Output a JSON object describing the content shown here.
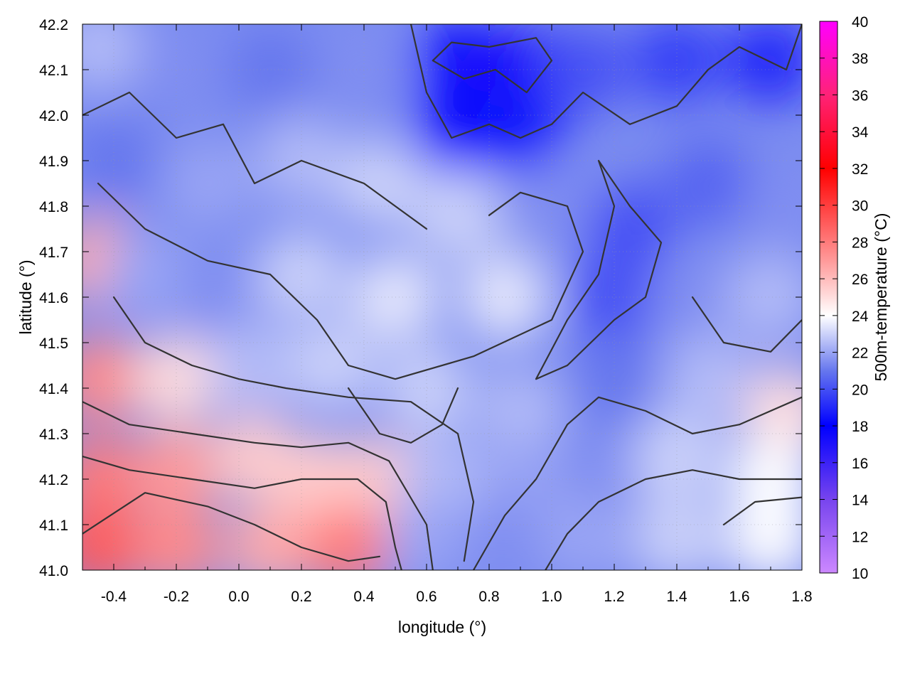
{
  "chart_data": {
    "type": "heatmap",
    "title": "",
    "xlabel": "longitude (°)",
    "ylabel": "latitude (°)",
    "colorbar_label": "500m-temperature (°C)",
    "xlim": [
      -0.5,
      1.8
    ],
    "ylim": [
      41.0,
      42.2
    ],
    "zlim": [
      10,
      40
    ],
    "x_ticks": [
      -0.4,
      -0.2,
      0.0,
      0.2,
      0.4,
      0.6,
      0.8,
      1.0,
      1.2,
      1.4,
      1.6,
      1.8
    ],
    "x_tick_labels": [
      "-0.4",
      "-0.2",
      "0.0",
      "0.2",
      "0.4",
      "0.6",
      "0.8",
      "1.0",
      "1.2",
      "1.4",
      "1.6",
      "1.8"
    ],
    "y_ticks": [
      41.0,
      41.1,
      41.2,
      41.3,
      41.4,
      41.5,
      41.6,
      41.7,
      41.8,
      41.9,
      42.0,
      42.1,
      42.2
    ],
    "y_tick_labels": [
      "41.0",
      "41.1",
      "41.2",
      "41.3",
      "41.4",
      "41.5",
      "41.6",
      "41.7",
      "41.8",
      "41.9",
      "42.0",
      "42.1",
      "42.2"
    ],
    "cb_ticks": [
      10,
      12,
      14,
      16,
      18,
      20,
      22,
      24,
      26,
      28,
      30,
      32,
      34,
      36,
      38,
      40
    ],
    "cb_tick_labels": [
      "10",
      "12",
      "14",
      "16",
      "18",
      "20",
      "22",
      "24",
      "26",
      "28",
      "30",
      "32",
      "34",
      "36",
      "38",
      "40"
    ],
    "grid": true,
    "colormap": [
      {
        "value": 10,
        "color": "#cc88ff"
      },
      {
        "value": 14,
        "color": "#7744ee"
      },
      {
        "value": 18,
        "color": "#0000ff"
      },
      {
        "value": 21,
        "color": "#6677ee"
      },
      {
        "value": 24,
        "color": "#ffffff"
      },
      {
        "value": 27,
        "color": "#ff9999"
      },
      {
        "value": 32,
        "color": "#ff0000"
      },
      {
        "value": 36,
        "color": "#ff2277"
      },
      {
        "value": 40,
        "color": "#ff00ff"
      }
    ],
    "temperature_samples": [
      {
        "lon": -0.45,
        "lat": 42.15,
        "temp": 22.5
      },
      {
        "lon": -0.2,
        "lat": 42.1,
        "temp": 21.5
      },
      {
        "lon": 0.1,
        "lat": 42.1,
        "temp": 21.0
      },
      {
        "lon": 0.4,
        "lat": 42.1,
        "temp": 21.5
      },
      {
        "lon": 0.7,
        "lat": 42.12,
        "temp": 17.5
      },
      {
        "lon": 0.9,
        "lat": 42.1,
        "temp": 17.0
      },
      {
        "lon": 1.1,
        "lat": 42.1,
        "temp": 20.0
      },
      {
        "lon": 1.4,
        "lat": 42.12,
        "temp": 19.5
      },
      {
        "lon": 1.7,
        "lat": 42.12,
        "temp": 19.0
      },
      {
        "lon": 0.7,
        "lat": 41.97,
        "temp": 17.5
      },
      {
        "lon": 0.9,
        "lat": 41.97,
        "temp": 18.5
      },
      {
        "lon": -0.4,
        "lat": 41.9,
        "temp": 21.0
      },
      {
        "lon": -0.1,
        "lat": 41.85,
        "temp": 22.0
      },
      {
        "lon": 0.2,
        "lat": 41.9,
        "temp": 22.5
      },
      {
        "lon": 0.45,
        "lat": 41.85,
        "temp": 23.0
      },
      {
        "lon": 0.7,
        "lat": 41.78,
        "temp": 23.0
      },
      {
        "lon": 1.0,
        "lat": 41.8,
        "temp": 21.5
      },
      {
        "lon": 1.25,
        "lat": 41.75,
        "temp": 20.0
      },
      {
        "lon": 1.5,
        "lat": 41.85,
        "temp": 20.5
      },
      {
        "lon": 1.75,
        "lat": 41.8,
        "temp": 21.5
      },
      {
        "lon": -0.45,
        "lat": 41.68,
        "temp": 26.5
      },
      {
        "lon": -0.3,
        "lat": 41.65,
        "temp": 22.0
      },
      {
        "lon": -0.05,
        "lat": 41.6,
        "temp": 21.5
      },
      {
        "lon": 0.2,
        "lat": 41.65,
        "temp": 23.0
      },
      {
        "lon": 0.5,
        "lat": 41.6,
        "temp": 23.5
      },
      {
        "lon": 0.85,
        "lat": 41.6,
        "temp": 23.5
      },
      {
        "lon": 1.2,
        "lat": 41.6,
        "temp": 20.0
      },
      {
        "lon": 1.45,
        "lat": 41.6,
        "temp": 21.5
      },
      {
        "lon": 1.7,
        "lat": 41.6,
        "temp": 22.5
      },
      {
        "lon": -0.45,
        "lat": 41.42,
        "temp": 27.5
      },
      {
        "lon": -0.2,
        "lat": 41.42,
        "temp": 25.0
      },
      {
        "lon": 0.05,
        "lat": 41.45,
        "temp": 22.5
      },
      {
        "lon": 0.3,
        "lat": 41.45,
        "temp": 23.0
      },
      {
        "lon": 0.6,
        "lat": 41.4,
        "temp": 23.0
      },
      {
        "lon": 0.9,
        "lat": 41.35,
        "temp": 22.5
      },
      {
        "lon": 1.2,
        "lat": 41.42,
        "temp": 21.0
      },
      {
        "lon": 1.5,
        "lat": 41.42,
        "temp": 22.5
      },
      {
        "lon": 1.75,
        "lat": 41.35,
        "temp": 25.0
      },
      {
        "lon": -0.45,
        "lat": 41.2,
        "temp": 28.0
      },
      {
        "lon": -0.2,
        "lat": 41.22,
        "temp": 27.0
      },
      {
        "lon": 0.05,
        "lat": 41.25,
        "temp": 25.5
      },
      {
        "lon": 0.25,
        "lat": 41.2,
        "temp": 25.5
      },
      {
        "lon": 0.45,
        "lat": 41.2,
        "temp": 25.5
      },
      {
        "lon": 0.65,
        "lat": 41.2,
        "temp": 22.5
      },
      {
        "lon": 0.9,
        "lat": 41.2,
        "temp": 22.0
      },
      {
        "lon": 1.15,
        "lat": 41.2,
        "temp": 21.5
      },
      {
        "lon": 1.4,
        "lat": 41.25,
        "temp": 23.0
      },
      {
        "lon": 1.7,
        "lat": 41.2,
        "temp": 24.0
      },
      {
        "lon": -0.45,
        "lat": 41.05,
        "temp": 29.0
      },
      {
        "lon": -0.2,
        "lat": 41.05,
        "temp": 27.5
      },
      {
        "lon": 0.1,
        "lat": 41.05,
        "temp": 26.5
      },
      {
        "lon": 0.35,
        "lat": 41.05,
        "temp": 28.0
      },
      {
        "lon": 0.6,
        "lat": 41.07,
        "temp": 22.0
      },
      {
        "lon": 0.85,
        "lat": 41.07,
        "temp": 21.5
      },
      {
        "lon": 1.1,
        "lat": 41.07,
        "temp": 22.0
      },
      {
        "lon": 1.4,
        "lat": 41.07,
        "temp": 23.0
      },
      {
        "lon": 1.7,
        "lat": 41.07,
        "temp": 24.0
      }
    ],
    "contours": [
      [
        [
          -0.5,
          41.08
        ],
        [
          -0.3,
          41.17
        ],
        [
          -0.1,
          41.14
        ],
        [
          0.05,
          41.1
        ],
        [
          0.2,
          41.05
        ],
        [
          0.35,
          41.02
        ],
        [
          0.45,
          41.03
        ]
      ],
      [
        [
          -0.5,
          41.25
        ],
        [
          -0.35,
          41.22
        ],
        [
          -0.15,
          41.2
        ],
        [
          0.05,
          41.18
        ],
        [
          0.2,
          41.2
        ],
        [
          0.38,
          41.2
        ],
        [
          0.47,
          41.15
        ],
        [
          0.5,
          41.05
        ],
        [
          0.52,
          41.0
        ]
      ],
      [
        [
          -0.5,
          41.37
        ],
        [
          -0.35,
          41.32
        ],
        [
          -0.15,
          41.3
        ],
        [
          0.05,
          41.28
        ],
        [
          0.2,
          41.27
        ],
        [
          0.35,
          41.28
        ],
        [
          0.48,
          41.24
        ],
        [
          0.6,
          41.1
        ],
        [
          0.62,
          41.0
        ]
      ],
      [
        [
          -0.4,
          41.6
        ],
        [
          -0.3,
          41.5
        ],
        [
          -0.15,
          41.45
        ],
        [
          0.0,
          41.42
        ],
        [
          0.15,
          41.4
        ],
        [
          0.35,
          41.38
        ],
        [
          0.55,
          41.37
        ],
        [
          0.7,
          41.3
        ],
        [
          0.75,
          41.15
        ],
        [
          0.72,
          41.02
        ]
      ],
      [
        [
          -0.45,
          41.85
        ],
        [
          -0.3,
          41.75
        ],
        [
          -0.1,
          41.68
        ],
        [
          0.1,
          41.65
        ],
        [
          0.25,
          41.55
        ],
        [
          0.35,
          41.45
        ],
        [
          0.5,
          41.42
        ],
        [
          0.75,
          41.47
        ],
        [
          1.0,
          41.55
        ],
        [
          1.1,
          41.7
        ],
        [
          1.05,
          41.8
        ],
        [
          0.9,
          41.83
        ],
        [
          0.8,
          41.78
        ]
      ],
      [
        [
          -0.5,
          42.0
        ],
        [
          -0.35,
          42.05
        ],
        [
          -0.2,
          41.95
        ],
        [
          -0.05,
          41.98
        ],
        [
          0.05,
          41.85
        ],
        [
          0.2,
          41.9
        ],
        [
          0.4,
          41.85
        ],
        [
          0.5,
          41.8
        ],
        [
          0.6,
          41.75
        ]
      ],
      [
        [
          0.55,
          42.2
        ],
        [
          0.6,
          42.05
        ],
        [
          0.68,
          41.95
        ],
        [
          0.8,
          41.98
        ],
        [
          0.9,
          41.95
        ],
        [
          1.0,
          41.98
        ],
        [
          1.1,
          42.05
        ],
        [
          1.25,
          41.98
        ],
        [
          1.4,
          42.02
        ],
        [
          1.5,
          42.1
        ],
        [
          1.6,
          42.15
        ],
        [
          1.75,
          42.1
        ],
        [
          1.8,
          42.2
        ]
      ],
      [
        [
          0.62,
          42.12
        ],
        [
          0.72,
          42.08
        ],
        [
          0.82,
          42.1
        ],
        [
          0.92,
          42.05
        ],
        [
          1.0,
          42.12
        ],
        [
          0.95,
          42.17
        ],
        [
          0.8,
          42.15
        ],
        [
          0.68,
          42.16
        ],
        [
          0.62,
          42.12
        ]
      ],
      [
        [
          1.15,
          41.9
        ],
        [
          1.25,
          41.8
        ],
        [
          1.35,
          41.72
        ],
        [
          1.3,
          41.6
        ],
        [
          1.2,
          41.55
        ],
        [
          1.05,
          41.45
        ],
        [
          0.95,
          41.42
        ],
        [
          1.05,
          41.55
        ],
        [
          1.15,
          41.65
        ],
        [
          1.2,
          41.8
        ],
        [
          1.15,
          41.9
        ]
      ],
      [
        [
          1.45,
          41.6
        ],
        [
          1.55,
          41.5
        ],
        [
          1.7,
          41.48
        ],
        [
          1.8,
          41.55
        ]
      ],
      [
        [
          0.75,
          41.0
        ],
        [
          0.85,
          41.12
        ],
        [
          0.95,
          41.2
        ],
        [
          1.05,
          41.32
        ],
        [
          1.15,
          41.38
        ],
        [
          1.3,
          41.35
        ],
        [
          1.45,
          41.3
        ],
        [
          1.6,
          41.32
        ],
        [
          1.8,
          41.38
        ]
      ],
      [
        [
          0.98,
          41.0
        ],
        [
          1.05,
          41.08
        ],
        [
          1.15,
          41.15
        ],
        [
          1.3,
          41.2
        ],
        [
          1.45,
          41.22
        ],
        [
          1.6,
          41.2
        ],
        [
          1.8,
          41.2
        ]
      ],
      [
        [
          1.55,
          41.1
        ],
        [
          1.65,
          41.15
        ],
        [
          1.8,
          41.16
        ]
      ],
      [
        [
          0.35,
          41.4
        ],
        [
          0.45,
          41.3
        ],
        [
          0.55,
          41.28
        ],
        [
          0.65,
          41.32
        ],
        [
          0.7,
          41.4
        ]
      ]
    ]
  }
}
